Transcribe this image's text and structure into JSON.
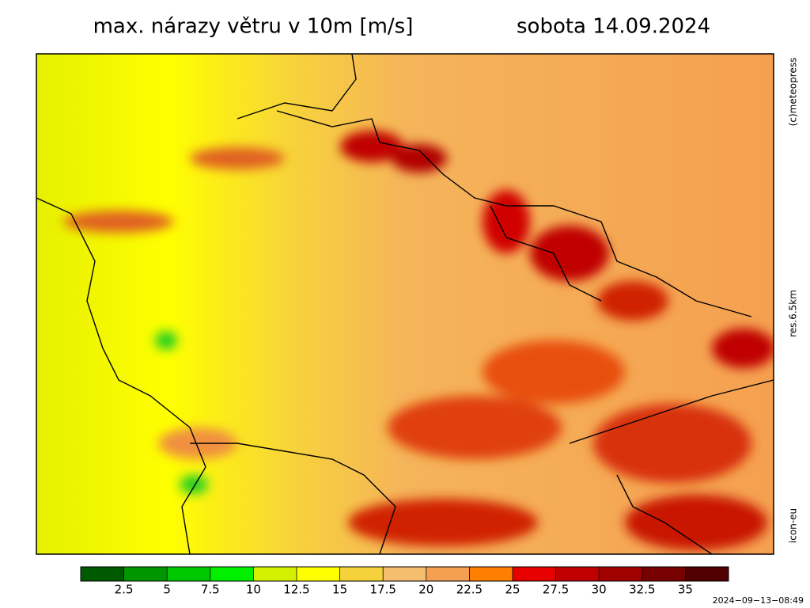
{
  "header": {
    "title": "max. nárazy větru v 10m [m/s]",
    "date": "sobota 14.09.2024"
  },
  "side_labels": {
    "copyright": "(c)meteopress",
    "resolution": "res.6.5km",
    "model": "icon-eu"
  },
  "colorbar": {
    "ticks": [
      2.5,
      5,
      7.5,
      10,
      12.5,
      15,
      17.5,
      20,
      22.5,
      25,
      27.5,
      30,
      32.5,
      35
    ],
    "colors": [
      "#005a00",
      "#009600",
      "#00c800",
      "#00f000",
      "#d2f000",
      "#ffff00",
      "#f5d23c",
      "#f5be6e",
      "#f5a050",
      "#ff8000",
      "#e60000",
      "#c00000",
      "#a00000",
      "#780000",
      "#500000"
    ]
  },
  "timestamp": "2024−09−13−08:49"
}
